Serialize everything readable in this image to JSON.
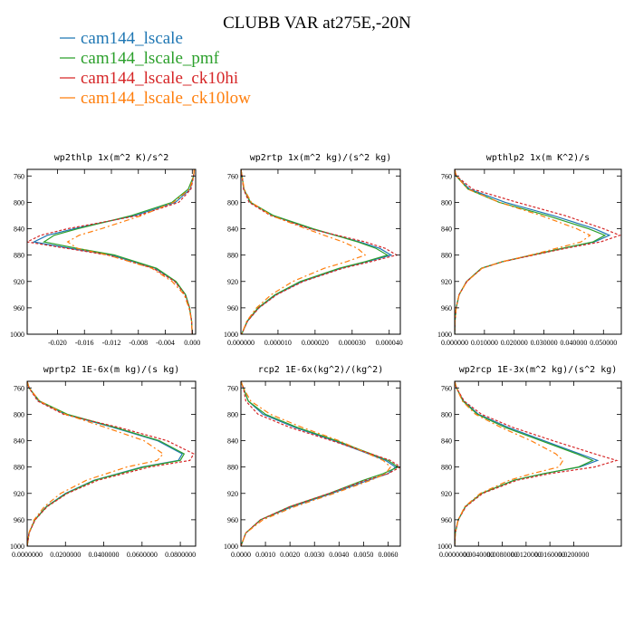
{
  "figure_title": "CLUBB VAR at275E,-20N",
  "chart_data": [
    {
      "type": "line",
      "title": "wp2thlp",
      "subtitle": "1x(m^2 K)/s^2",
      "xlim": [
        -0.0245,
        0.0005
      ],
      "ylim": [
        1000,
        750
      ],
      "xticks": [
        -0.02,
        -0.016,
        -0.012,
        -0.008,
        -0.004,
        0.0
      ],
      "xtick_labels": [
        "-0.020",
        "-0.016",
        "-0.012",
        "-0.008",
        "-0.004",
        "0.000"
      ],
      "yticks": [
        760,
        800,
        840,
        880,
        920,
        960,
        1000
      ],
      "y": [
        750,
        760,
        780,
        800,
        820,
        840,
        850,
        860,
        870,
        880,
        900,
        920,
        940,
        960,
        980,
        1000
      ],
      "series": [
        {
          "name": "cam144_lscale",
          "color": "#1f77b4",
          "dash": "",
          "x": [
            0.0003,
            0.0002,
            -0.0003,
            -0.0025,
            -0.0085,
            -0.0175,
            -0.0215,
            -0.0235,
            -0.018,
            -0.012,
            -0.0055,
            -0.0025,
            -0.001,
            -0.0004,
            -0.0001,
            0.0
          ]
        },
        {
          "name": "cam144_lscale_pmf",
          "color": "#2ca02c",
          "dash": "",
          "x": [
            0.0003,
            0.0002,
            -0.0006,
            -0.003,
            -0.009,
            -0.017,
            -0.0205,
            -0.022,
            -0.017,
            -0.0115,
            -0.0053,
            -0.0024,
            -0.001,
            -0.0004,
            -0.0001,
            0.0
          ]
        },
        {
          "name": "cam144_lscale_ck10hi",
          "color": "#d62728",
          "dash": "3,2",
          "x": [
            0.0003,
            0.0002,
            -0.0002,
            -0.002,
            -0.008,
            -0.0185,
            -0.0225,
            -0.0245,
            -0.0185,
            -0.0125,
            -0.0058,
            -0.0026,
            -0.0011,
            -0.0004,
            -0.0001,
            0.0
          ]
        },
        {
          "name": "cam144_lscale_ck10low",
          "color": "#ff7f0e",
          "dash": "6,3,2,3",
          "x": [
            0.0003,
            0.0002,
            -0.0004,
            -0.0028,
            -0.0075,
            -0.0135,
            -0.0168,
            -0.0185,
            -0.017,
            -0.0125,
            -0.006,
            -0.003,
            -0.0012,
            -0.0005,
            -0.0001,
            0.0
          ]
        }
      ]
    },
    {
      "type": "line",
      "title": "wp2rtp",
      "subtitle": "1x(m^2 kg)/(s^2 kg)",
      "xlim": [
        0.0,
        4.3e-05
      ],
      "ylim": [
        1000,
        750
      ],
      "xticks": [
        0.0,
        1e-05,
        2e-05,
        3e-05,
        4e-05
      ],
      "xtick_labels": [
        "0.000000",
        "0.000010",
        "0.000020",
        "0.000030",
        "0.000040"
      ],
      "yticks": [
        760,
        800,
        840,
        880,
        920,
        960,
        1000
      ],
      "y": [
        750,
        760,
        780,
        800,
        820,
        840,
        860,
        870,
        880,
        890,
        900,
        920,
        940,
        960,
        980,
        1000
      ],
      "series": [
        {
          "name": "cam144_lscale",
          "color": "#1f77b4",
          "dash": "",
          "x": [
            0.0,
            3e-07,
            8e-07,
            2.5e-06,
            8.5e-06,
            1.9e-05,
            3.2e-05,
            3.75e-05,
            4.05e-05,
            3.4e-05,
            2.7e-05,
            1.65e-05,
            9.5e-06,
            4.8e-06,
            1.8e-06,
            2e-07
          ]
        },
        {
          "name": "cam144_lscale_pmf",
          "color": "#2ca02c",
          "dash": "",
          "x": [
            0.0,
            3e-07,
            8e-07,
            2.6e-06,
            8.8e-06,
            1.95e-05,
            3.15e-05,
            3.65e-05,
            3.95e-05,
            3.35e-05,
            2.65e-05,
            1.6e-05,
            9.2e-06,
            4.6e-06,
            1.7e-06,
            2e-07
          ]
        },
        {
          "name": "cam144_lscale_ck10hi",
          "color": "#d62728",
          "dash": "3,2",
          "x": [
            0.0,
            3e-07,
            7e-07,
            2.2e-06,
            8e-06,
            1.85e-05,
            3.35e-05,
            3.9e-05,
            4.2e-05,
            3.5e-05,
            2.75e-05,
            1.68e-05,
            9.7e-06,
            4.9e-06,
            1.8e-06,
            2e-07
          ]
        },
        {
          "name": "cam144_lscale_ck10low",
          "color": "#ff7f0e",
          "dash": "6,3,2,3",
          "x": [
            0.0,
            3e-07,
            9e-07,
            2.8e-06,
            8.2e-06,
            1.75e-05,
            2.75e-05,
            3.15e-05,
            3.35e-05,
            2.85e-05,
            2.25e-05,
            1.4e-05,
            8.2e-06,
            4.2e-06,
            1.6e-06,
            2e-07
          ]
        }
      ]
    },
    {
      "type": "line",
      "title": "wpthlp2",
      "subtitle": "1x(m K^2)/s",
      "xlim": [
        0.0,
        0.056
      ],
      "ylim": [
        1000,
        750
      ],
      "xticks": [
        0.0,
        0.01,
        0.02,
        0.03,
        0.04,
        0.05
      ],
      "xtick_labels": [
        "0.000000",
        "0.010000",
        "0.020000",
        "0.030000",
        "0.040000",
        "0.050000"
      ],
      "yticks": [
        760,
        800,
        840,
        880,
        920,
        960,
        1000
      ],
      "y": [
        750,
        760,
        780,
        800,
        820,
        840,
        850,
        860,
        870,
        880,
        890,
        900,
        920,
        940,
        960,
        980,
        1000
      ],
      "series": [
        {
          "name": "cam144_lscale",
          "color": "#1f77b4",
          "dash": "",
          "x": [
            0.0,
            0.0005,
            0.005,
            0.017,
            0.033,
            0.047,
            0.052,
            0.047,
            0.036,
            0.026,
            0.016,
            0.009,
            0.004,
            0.0015,
            0.0005,
            0.0001,
            0.0
          ]
        },
        {
          "name": "cam144_lscale_pmf",
          "color": "#2ca02c",
          "dash": "",
          "x": [
            0.0,
            0.0005,
            0.0045,
            0.015,
            0.031,
            0.045,
            0.0505,
            0.0465,
            0.036,
            0.026,
            0.016,
            0.009,
            0.004,
            0.0015,
            0.0005,
            0.0001,
            0.0
          ]
        },
        {
          "name": "cam144_lscale_ck10hi",
          "color": "#d62728",
          "dash": "3,2",
          "x": [
            0.0,
            0.0006,
            0.006,
            0.021,
            0.037,
            0.05,
            0.0555,
            0.049,
            0.037,
            0.0265,
            0.0162,
            0.0092,
            0.0041,
            0.0015,
            0.0005,
            0.0001,
            0.0
          ]
        },
        {
          "name": "cam144_lscale_ck10low",
          "color": "#ff7f0e",
          "dash": "6,3,2,3",
          "x": [
            0.0,
            0.0005,
            0.0045,
            0.015,
            0.029,
            0.041,
            0.0455,
            0.0425,
            0.034,
            0.0255,
            0.016,
            0.0092,
            0.0041,
            0.0015,
            0.0005,
            0.0001,
            0.0
          ]
        }
      ]
    },
    {
      "type": "line",
      "title": "wprtp2",
      "subtitle": "1E-6x(m kg)/(s kg)",
      "xlim": [
        0.0,
        0.088
      ],
      "ylim": [
        1000,
        750
      ],
      "xticks": [
        0.0,
        0.02,
        0.04,
        0.06,
        0.08
      ],
      "xtick_labels": [
        "0.0000000",
        "0.0200000",
        "0.0400000",
        "0.0600000",
        "0.0800000"
      ],
      "yticks": [
        760,
        800,
        840,
        880,
        920,
        960,
        1000
      ],
      "y": [
        750,
        760,
        780,
        800,
        820,
        840,
        860,
        870,
        880,
        900,
        920,
        940,
        960,
        980,
        1000
      ],
      "series": [
        {
          "name": "cam144_lscale",
          "color": "#1f77b4",
          "dash": "",
          "x": [
            0.0,
            0.001,
            0.006,
            0.02,
            0.045,
            0.068,
            0.081,
            0.079,
            0.06,
            0.035,
            0.02,
            0.01,
            0.004,
            0.001,
            0.0
          ]
        },
        {
          "name": "cam144_lscale_pmf",
          "color": "#2ca02c",
          "dash": "",
          "x": [
            0.0,
            0.001,
            0.0065,
            0.021,
            0.046,
            0.069,
            0.082,
            0.08,
            0.061,
            0.0355,
            0.0205,
            0.0102,
            0.0041,
            0.001,
            0.0
          ]
        },
        {
          "name": "cam144_lscale_ck10hi",
          "color": "#d62728",
          "dash": "3,2",
          "x": [
            0.0,
            0.001,
            0.0055,
            0.019,
            0.048,
            0.073,
            0.087,
            0.085,
            0.064,
            0.037,
            0.021,
            0.0105,
            0.0042,
            0.001,
            0.0
          ]
        },
        {
          "name": "cam144_lscale_ck10low",
          "color": "#ff7f0e",
          "dash": "6,3,2,3",
          "x": [
            0.0,
            0.001,
            0.0065,
            0.02,
            0.041,
            0.061,
            0.071,
            0.068,
            0.052,
            0.031,
            0.0175,
            0.009,
            0.0036,
            0.0009,
            0.0
          ]
        }
      ]
    },
    {
      "type": "line",
      "title": "rcp2",
      "subtitle": "1E-6x(kg^2)/(kg^2)",
      "xlim": [
        0.0,
        0.0065
      ],
      "ylim": [
        1000,
        750
      ],
      "xticks": [
        0.0,
        0.001,
        0.002,
        0.003,
        0.004,
        0.005,
        0.006
      ],
      "xtick_labels": [
        "0.0000",
        "0.0010",
        "0.0020",
        "0.0030",
        "0.0040",
        "0.0050",
        "0.0060"
      ],
      "yticks": [
        760,
        800,
        840,
        880,
        920,
        960,
        1000
      ],
      "y": [
        750,
        760,
        780,
        800,
        820,
        840,
        860,
        870,
        880,
        890,
        900,
        920,
        940,
        960,
        980,
        1000
      ],
      "series": [
        {
          "name": "cam144_lscale",
          "color": "#1f77b4",
          "dash": "",
          "x": [
            0.0,
            0.0001,
            0.0003,
            0.0009,
            0.0022,
            0.0038,
            0.0052,
            0.0059,
            0.0063,
            0.006,
            0.0052,
            0.0037,
            0.0021,
            0.0008,
            0.0002,
            0.0
          ]
        },
        {
          "name": "cam144_lscale_pmf",
          "color": "#2ca02c",
          "dash": "",
          "x": [
            0.0,
            0.0001,
            0.0003,
            0.001,
            0.0023,
            0.0039,
            0.0053,
            0.006,
            0.0064,
            0.0058,
            0.005,
            0.0036,
            0.002,
            0.0008,
            0.0002,
            0.0
          ]
        },
        {
          "name": "cam144_lscale_ck10hi",
          "color": "#d62728",
          "dash": "3,2",
          "x": [
            0.0,
            0.0001,
            0.0002,
            0.0007,
            0.002,
            0.0037,
            0.0053,
            0.0061,
            0.0065,
            0.006,
            0.0051,
            0.0036,
            0.002,
            0.0008,
            0.0002,
            0.0
          ]
        },
        {
          "name": "cam144_lscale_ck10low",
          "color": "#ff7f0e",
          "dash": "6,3,2,3",
          "x": [
            0.0,
            0.0001,
            0.0004,
            0.0012,
            0.0025,
            0.004,
            0.0052,
            0.0058,
            0.0061,
            0.0059,
            0.0053,
            0.0038,
            0.0022,
            0.0009,
            0.0002,
            0.0
          ]
        }
      ]
    },
    {
      "type": "line",
      "title": "wp2rcp",
      "subtitle": "1E-3x(m^2 kg)/(s^2 kg)",
      "xlim": [
        0.0,
        0.028
      ],
      "ylim": [
        1000,
        750
      ],
      "xticks": [
        0.0,
        0.004,
        0.008,
        0.012,
        0.016,
        0.02
      ],
      "xtick_labels": [
        "0.0000000",
        "0.0040000",
        "0.0080000",
        "0.0120000",
        "0.0160000",
        "0.0200000"
      ],
      "yticks": [
        760,
        800,
        840,
        880,
        920,
        960,
        1000
      ],
      "y": [
        750,
        760,
        780,
        800,
        820,
        840,
        860,
        870,
        880,
        890,
        900,
        920,
        940,
        960,
        980,
        1000
      ],
      "series": [
        {
          "name": "cam144_lscale",
          "color": "#1f77b4",
          "dash": "",
          "x": [
            0.0,
            0.0003,
            0.0015,
            0.004,
            0.009,
            0.015,
            0.021,
            0.024,
            0.021,
            0.015,
            0.01,
            0.0045,
            0.0018,
            0.0006,
            0.0001,
            0.0
          ]
        },
        {
          "name": "cam144_lscale_pmf",
          "color": "#2ca02c",
          "dash": "",
          "x": [
            0.0,
            0.0003,
            0.0014,
            0.0038,
            0.0085,
            0.0145,
            0.0205,
            0.0232,
            0.0208,
            0.015,
            0.01,
            0.0045,
            0.0018,
            0.0006,
            0.0001,
            0.0
          ]
        },
        {
          "name": "cam144_lscale_ck10hi",
          "color": "#d62728",
          "dash": "3,2",
          "x": [
            0.0,
            0.0003,
            0.0016,
            0.0045,
            0.0098,
            0.0165,
            0.0235,
            0.0272,
            0.0235,
            0.016,
            0.0105,
            0.0047,
            0.0019,
            0.0006,
            0.0001,
            0.0
          ]
        },
        {
          "name": "cam144_lscale_ck10low",
          "color": "#ff7f0e",
          "dash": "6,3,2,3",
          "x": [
            0.0,
            0.0003,
            0.0013,
            0.0035,
            0.0078,
            0.0128,
            0.017,
            0.0182,
            0.0175,
            0.013,
            0.0092,
            0.0043,
            0.0017,
            0.0006,
            0.0001,
            0.0
          ]
        }
      ]
    }
  ]
}
